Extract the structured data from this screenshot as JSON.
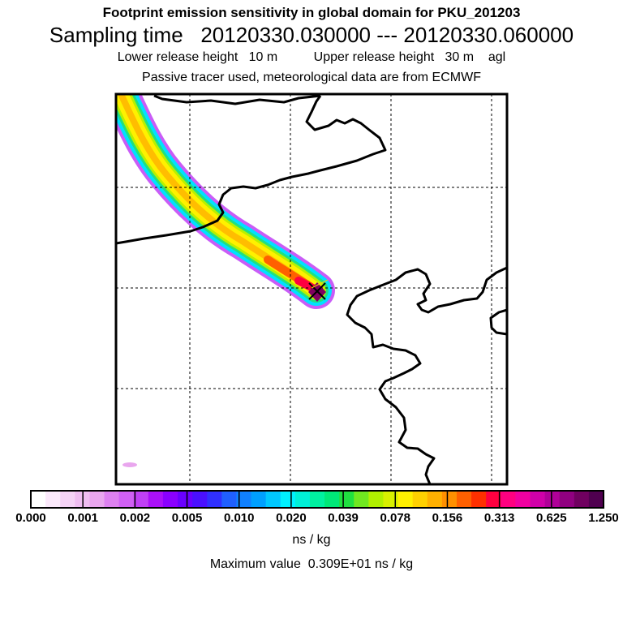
{
  "header": {
    "line1": "Footprint emission sensitivity in global domain for PKU_201203",
    "line2": "Sampling time   20120330.030000 --- 20120330.060000",
    "line3": "Lower release height   10 m          Upper release height   30 m    agl",
    "line4": "Passive tracer used, meteorological data are from ECMWF"
  },
  "map": {
    "release_marker": "release-point-x-marker"
  },
  "colorbar": {
    "colors": [
      "#ffffff",
      "#fbe9fb",
      "#f5d3f6",
      "#efbdf1",
      "#e9a6ee",
      "#dd80f0",
      "#d060f4",
      "#c040f6",
      "#aa10f8",
      "#8a00ff",
      "#6a00ff",
      "#4a10ff",
      "#3030ff",
      "#2060ff",
      "#1080ff",
      "#00a0ff",
      "#00c8ff",
      "#00f0ff",
      "#00f0d8",
      "#00f0a0",
      "#00e878",
      "#20e040",
      "#70e820",
      "#b0f000",
      "#d8f000",
      "#fff000",
      "#ffd000",
      "#ffb000",
      "#ff9000",
      "#ff6000",
      "#ff3000",
      "#ff0040",
      "#ff0080",
      "#f000a0",
      "#d000a8",
      "#b00098",
      "#900080",
      "#700060",
      "#500050"
    ],
    "tick_labels": [
      "0.000",
      "0.001",
      "0.002",
      "0.005",
      "0.010",
      "0.020",
      "0.039",
      "0.078",
      "0.156",
      "0.313",
      "0.625",
      "1.250"
    ],
    "units": "ns / kg",
    "max_value": "Maximum value  0.309E+01 ns / kg"
  }
}
